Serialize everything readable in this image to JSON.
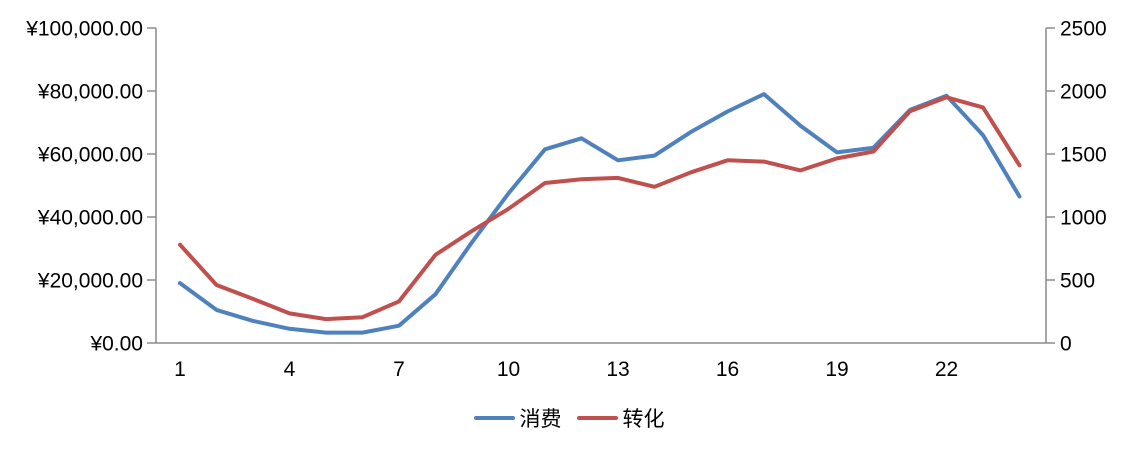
{
  "chart_data": {
    "type": "line",
    "x": [
      1,
      2,
      3,
      4,
      5,
      6,
      7,
      8,
      9,
      10,
      11,
      12,
      13,
      14,
      15,
      16,
      17,
      18,
      19,
      20,
      21,
      22,
      23,
      24
    ],
    "series": [
      {
        "key": "spend",
        "name": "消费",
        "axis": "left",
        "color": "#4F81BD",
        "values": [
          19000,
          10500,
          7000,
          4500,
          3300,
          3300,
          5500,
          15500,
          32000,
          47500,
          61500,
          65000,
          58000,
          59500,
          67000,
          73500,
          79000,
          69000,
          60500,
          62000,
          74000,
          78500,
          66000,
          46500
        ]
      },
      {
        "key": "conversion",
        "name": "转化",
        "axis": "right",
        "color": "#C0504D",
        "values": [
          780,
          460,
          350,
          235,
          190,
          205,
          330,
          700,
          890,
          1065,
          1270,
          1300,
          1310,
          1240,
          1355,
          1450,
          1440,
          1370,
          1465,
          1520,
          1840,
          1950,
          1870,
          1410
        ]
      }
    ],
    "left_axis": {
      "min": 0,
      "max": 100000,
      "step": 20000,
      "tick_labels": [
        "¥0.00",
        "¥20,000.00",
        "¥40,000.00",
        "¥60,000.00",
        "¥80,000.00",
        "¥100,000.00"
      ]
    },
    "right_axis": {
      "min": 0,
      "max": 2500,
      "step": 500,
      "tick_labels": [
        "0",
        "500",
        "1000",
        "1500",
        "2000",
        "2500"
      ]
    },
    "x_axis": {
      "tick_values": [
        1,
        4,
        7,
        10,
        13,
        16,
        19,
        22
      ],
      "tick_labels": [
        "1",
        "4",
        "7",
        "10",
        "13",
        "16",
        "19",
        "22"
      ]
    },
    "legend": {
      "position": "bottom",
      "entries": [
        "消费",
        "转化"
      ]
    },
    "grid": false
  },
  "colors": {
    "series_blue": "#4F81BD",
    "series_red": "#C0504D",
    "axis_line": "#8C8C8C",
    "text": "#000000",
    "background": "#FFFFFF"
  }
}
